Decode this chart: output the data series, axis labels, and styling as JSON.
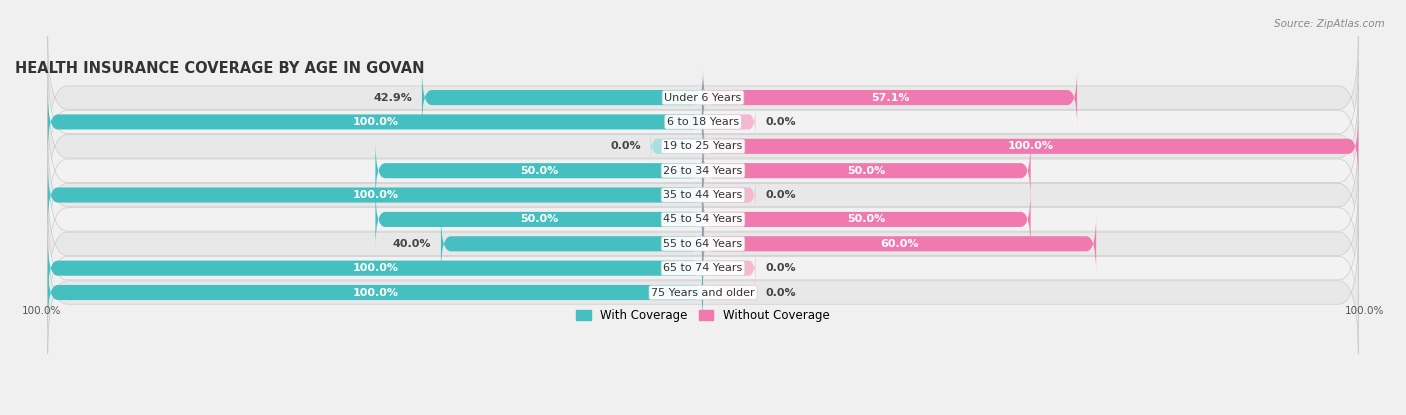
{
  "title": "HEALTH INSURANCE COVERAGE BY AGE IN GOVAN",
  "source": "Source: ZipAtlas.com",
  "categories": [
    "Under 6 Years",
    "6 to 18 Years",
    "19 to 25 Years",
    "26 to 34 Years",
    "35 to 44 Years",
    "45 to 54 Years",
    "55 to 64 Years",
    "65 to 74 Years",
    "75 Years and older"
  ],
  "with_coverage": [
    42.9,
    100.0,
    0.0,
    50.0,
    100.0,
    50.0,
    40.0,
    100.0,
    100.0
  ],
  "without_coverage": [
    57.1,
    0.0,
    100.0,
    50.0,
    0.0,
    50.0,
    60.0,
    0.0,
    0.0
  ],
  "color_with": "#45bfbf",
  "color_with_light": "#a8dfdf",
  "color_without": "#f07ab0",
  "color_without_light": "#f5b8d0",
  "bar_height": 0.62,
  "row_bg_dark": "#e8e8e8",
  "row_bg_light": "#f2f2f2",
  "title_fontsize": 10.5,
  "label_fontsize": 8.0,
  "category_fontsize": 8.0,
  "legend_fontsize": 8.5,
  "source_fontsize": 7.5,
  "xlim": 100,
  "stub_size": 8.0
}
